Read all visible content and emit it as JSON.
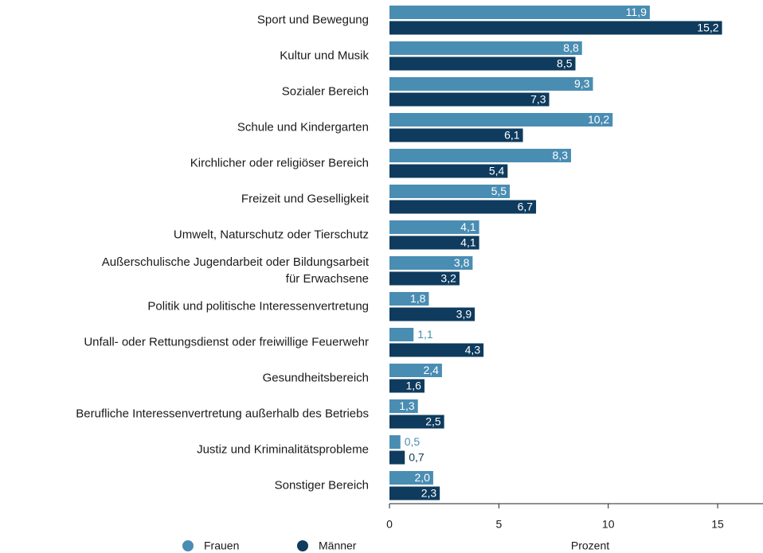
{
  "chart_data": {
    "type": "bar",
    "orientation": "horizontal",
    "categories": [
      "Sport und Bewegung",
      "Kultur und Musik",
      "Sozialer Bereich",
      "Schule und Kindergarten",
      "Kirchlicher oder religiöser Bereich",
      "Freizeit und Geselligkeit",
      "Umwelt, Naturschutz oder Tierschutz",
      "Außerschulische Jugendarbeit oder Bildungsarbeit\nfür Erwachsene",
      "Politik und politische Interessenvertretung",
      "Unfall- oder Rettungsdienst oder freiwillige Feuerwehr",
      "Gesundheitsbereich",
      "Berufliche Interessenvertretung außerhalb des Betriebs",
      "Justiz und Kriminalitätsprobleme",
      "Sonstiger Bereich"
    ],
    "series": [
      {
        "name": "Frauen",
        "color": "#4a8db3",
        "values": [
          11.9,
          8.8,
          9.3,
          10.2,
          8.3,
          5.5,
          4.1,
          3.8,
          1.8,
          1.1,
          2.4,
          1.3,
          0.5,
          2.0
        ],
        "value_labels": [
          "11,9",
          "8,8",
          "9,3",
          "10,2",
          "8,3",
          "5,5",
          "4,1",
          "3,8",
          "1,8",
          "1,1",
          "2,4",
          "1,3",
          "0,5",
          "2,0"
        ]
      },
      {
        "name": "Männer",
        "color": "#0e3b5e",
        "values": [
          15.2,
          8.5,
          7.3,
          6.1,
          5.4,
          6.7,
          4.1,
          3.2,
          3.9,
          4.3,
          1.6,
          2.5,
          0.7,
          2.3
        ],
        "value_labels": [
          "15,2",
          "8,5",
          "7,3",
          "6,1",
          "5,4",
          "6,7",
          "4,1",
          "3,2",
          "3,9",
          "4,3",
          "1,6",
          "2,5",
          "0,7",
          "2,3"
        ]
      }
    ],
    "xlabel": "Prozent",
    "xlim": [
      0,
      17
    ],
    "xticks": [
      0,
      5,
      10,
      15
    ],
    "legend": "bottom-left"
  }
}
